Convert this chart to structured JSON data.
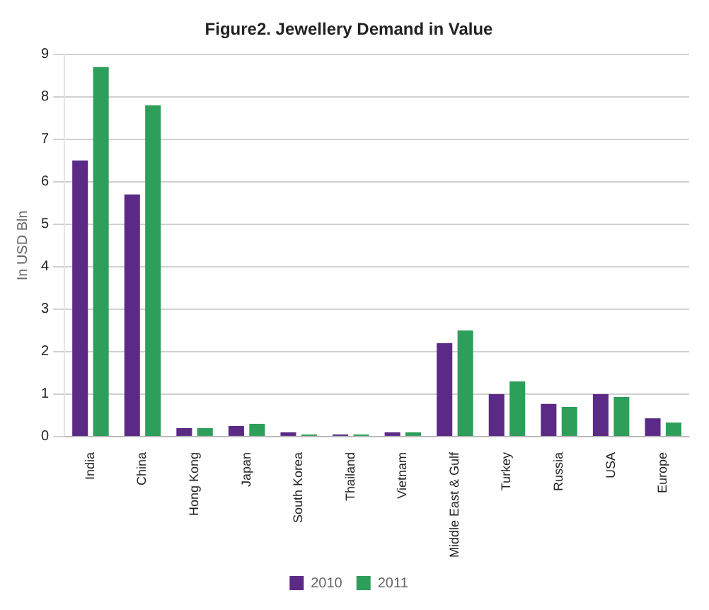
{
  "chart_data": {
    "type": "bar",
    "title": "Figure2. Jewellery Demand in Value",
    "ylabel": "In USD Bln",
    "categories": [
      "India",
      "China",
      "Hong Kong",
      "Japan",
      "South Korea",
      "Thailand",
      "Vietnam",
      "Middle East & Gulf",
      "Turkey",
      "Russia",
      "USA",
      "Europe"
    ],
    "series": [
      {
        "name": "2010",
        "color": "#5b2a86",
        "values": [
          6.5,
          5.7,
          0.2,
          0.25,
          0.1,
          0.05,
          0.1,
          2.2,
          1.0,
          0.77,
          1.0,
          0.43
        ]
      },
      {
        "name": "2011",
        "color": "#2e9e5b",
        "values": [
          8.7,
          7.8,
          0.2,
          0.3,
          0.05,
          0.05,
          0.1,
          2.5,
          1.3,
          0.7,
          0.93,
          0.33
        ]
      }
    ],
    "ylim": [
      0,
      9
    ],
    "yticks": [
      0,
      1,
      2,
      3,
      4,
      5,
      6,
      7,
      8,
      9
    ],
    "grid": "y",
    "legend": "bottom"
  }
}
